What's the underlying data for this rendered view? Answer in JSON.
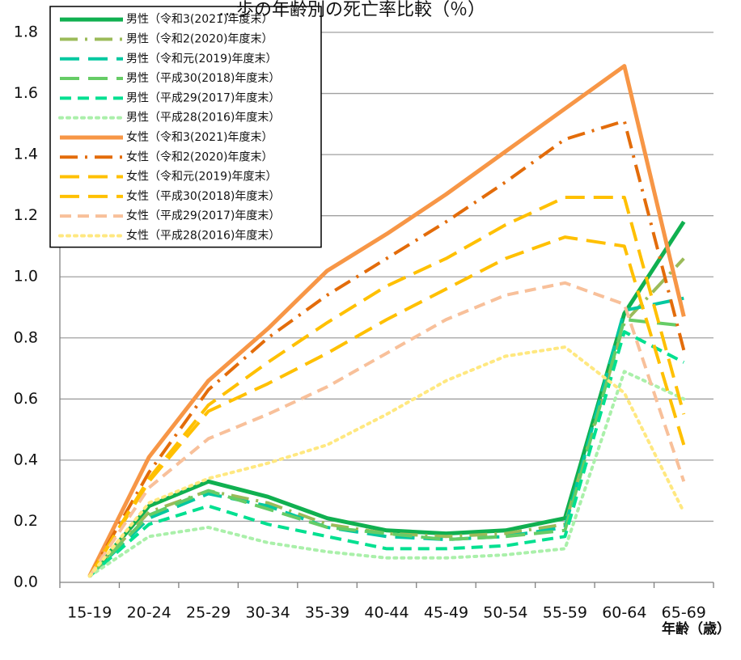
{
  "chart_data": {
    "type": "line",
    "title": "…歩の年齢別の死亡率比較（％）",
    "xlabel": "年齢（歳）",
    "ylabel": "",
    "ylim": [
      0,
      1.8
    ],
    "yticks": [
      "0.0",
      "0.2",
      "0.4",
      "0.6",
      "0.8",
      "1.0",
      "1.2",
      "1.4",
      "1.6",
      "1.8"
    ],
    "grid": true,
    "legend_position": "top-left",
    "categories": [
      "15-19",
      "20-24",
      "25-29",
      "30-34",
      "35-39",
      "40-44",
      "45-49",
      "50-54",
      "55-59",
      "60-64",
      "65-69"
    ],
    "series": [
      {
        "name": "男性（令和3(2021)年度末）",
        "color": "#10b050",
        "dash": "solid",
        "width": 5,
        "values": [
          0.02,
          0.25,
          0.33,
          0.28,
          0.21,
          0.17,
          0.16,
          0.17,
          0.21,
          0.88,
          1.18
        ]
      },
      {
        "name": "男性（令和2(2020)年度末）",
        "color": "#9bbb59",
        "dash": "dashdot",
        "width": 4,
        "values": [
          0.02,
          0.23,
          0.3,
          0.26,
          0.19,
          0.16,
          0.15,
          0.16,
          0.19,
          0.85,
          1.06
        ]
      },
      {
        "name": "男性（令和元(2019)年度末）",
        "color": "#00c8a0",
        "dash": "longdash",
        "width": 4,
        "values": [
          0.02,
          0.21,
          0.29,
          0.25,
          0.18,
          0.15,
          0.14,
          0.15,
          0.18,
          0.89,
          0.93
        ]
      },
      {
        "name": "男性（平成30(2018)年度末）",
        "color": "#66cc66",
        "dash": "longdash",
        "width": 4,
        "values": [
          0.02,
          0.22,
          0.3,
          0.24,
          0.18,
          0.16,
          0.14,
          0.15,
          0.17,
          0.86,
          0.84
        ]
      },
      {
        "name": "男性（平成29(2017)年度末）",
        "color": "#00e090",
        "dash": "dash",
        "width": 4,
        "values": [
          0.02,
          0.19,
          0.25,
          0.19,
          0.15,
          0.11,
          0.11,
          0.12,
          0.15,
          0.82,
          0.72
        ]
      },
      {
        "name": "男性（平成28(2016)年度末）",
        "color": "#aaf0aa",
        "dash": "dot",
        "width": 4,
        "values": [
          0.02,
          0.15,
          0.18,
          0.13,
          0.1,
          0.08,
          0.08,
          0.09,
          0.11,
          0.69,
          0.6
        ]
      },
      {
        "name": "女性（令和3(2021)年度末）",
        "color": "#f79646",
        "dash": "solid",
        "width": 5,
        "values": [
          0.02,
          0.41,
          0.66,
          0.83,
          1.02,
          1.14,
          1.27,
          1.41,
          1.55,
          1.69,
          0.87
        ]
      },
      {
        "name": "女性（令和2(2020)年度末）",
        "color": "#e36c0a",
        "dash": "dashdot",
        "width": 4,
        "values": [
          0.02,
          0.36,
          0.63,
          0.8,
          0.94,
          1.06,
          1.18,
          1.31,
          1.45,
          1.51,
          0.76
        ]
      },
      {
        "name": "女性（令和元(2019)年度末）",
        "color": "#ffc000",
        "dash": "longdash",
        "width": 4,
        "values": [
          0.02,
          0.34,
          0.58,
          0.72,
          0.85,
          0.97,
          1.06,
          1.17,
          1.26,
          1.26,
          0.55
        ]
      },
      {
        "name": "女性（平成30(2018)年度末）",
        "color": "#ffc000",
        "dash": "longdash",
        "width": 4,
        "values": [
          0.02,
          0.33,
          0.56,
          0.65,
          0.75,
          0.86,
          0.96,
          1.06,
          1.13,
          1.1,
          0.45
        ]
      },
      {
        "name": "女性（平成29(2017)年度末）",
        "color": "#f8c09a",
        "dash": "dash",
        "width": 4,
        "values": [
          0.02,
          0.31,
          0.47,
          0.55,
          0.64,
          0.75,
          0.86,
          0.94,
          0.98,
          0.91,
          0.33
        ]
      },
      {
        "name": "女性（平成28(2016)年度末）",
        "color": "#ffe880",
        "dash": "dot",
        "width": 4,
        "values": [
          0.02,
          0.26,
          0.34,
          0.39,
          0.45,
          0.55,
          0.66,
          0.74,
          0.77,
          0.62,
          0.23
        ]
      }
    ]
  }
}
